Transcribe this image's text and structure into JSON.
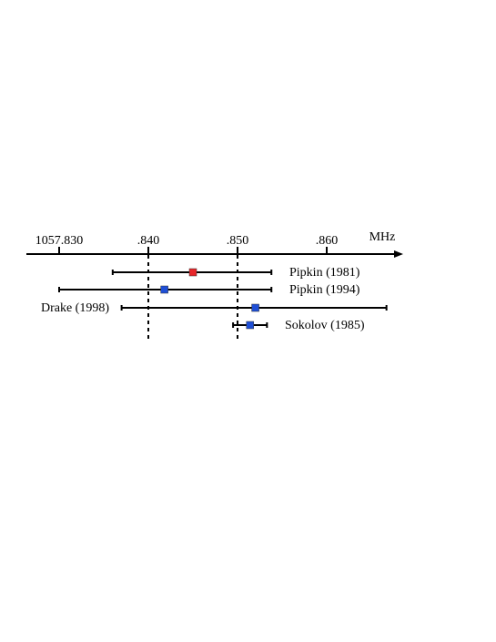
{
  "chart_data": {
    "type": "errorbar",
    "axis": {
      "unit": "MHz",
      "ticks": [
        {
          "value": 1057.83,
          "label": "1057.830"
        },
        {
          "value": 1057.84,
          "label": ".840"
        },
        {
          "value": 1057.85,
          "label": ".850"
        },
        {
          "value": 1057.86,
          "label": ".860"
        }
      ],
      "range": [
        1057.826,
        1057.868
      ],
      "dashed_reference_lines": [
        1057.84,
        1057.85
      ]
    },
    "series": [
      {
        "name": "Pipkin (1981)",
        "value": 1057.845,
        "error_low": 1057.836,
        "error_high": 1057.8538,
        "marker_color": "#e8262a",
        "label_side": "right"
      },
      {
        "name": "Pipkin (1994)",
        "value": 1057.8418,
        "error_low": 1057.83,
        "error_high": 1057.8538,
        "marker_color": "#1f4fd6",
        "label_side": "right"
      },
      {
        "name": "Drake (1998)",
        "value": 1057.852,
        "error_low": 1057.837,
        "error_high": 1057.8667,
        "marker_color": "#1f4fd6",
        "label_side": "left"
      },
      {
        "name": "Sokolov (1985)",
        "value": 1057.8514,
        "error_low": 1057.8495,
        "error_high": 1057.8533,
        "marker_color": "#1f4fd6",
        "label_side": "right"
      }
    ]
  }
}
